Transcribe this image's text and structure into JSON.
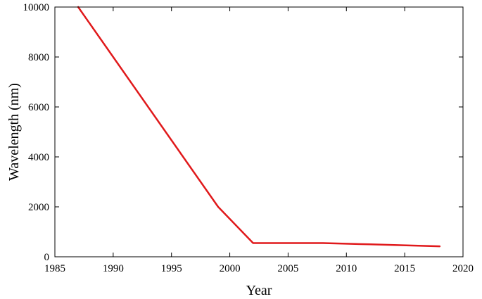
{
  "chart_data": {
    "type": "line",
    "title": "",
    "xlabel": "Year",
    "ylabel": "Wavelength (nm)",
    "xlim": [
      1985,
      2020
    ],
    "ylim": [
      0,
      10000
    ],
    "xticks": [
      1985,
      1990,
      1995,
      2000,
      2005,
      2010,
      2015,
      2020
    ],
    "yticks": [
      0,
      2000,
      4000,
      6000,
      8000,
      10000
    ],
    "grid": false,
    "legend": "none",
    "series": [
      {
        "color": "#e0191b",
        "x": [
          1987,
          1999,
          2002,
          2008,
          2012,
          2018
        ],
        "y": [
          10000,
          2000,
          550,
          550,
          500,
          420
        ]
      }
    ]
  }
}
